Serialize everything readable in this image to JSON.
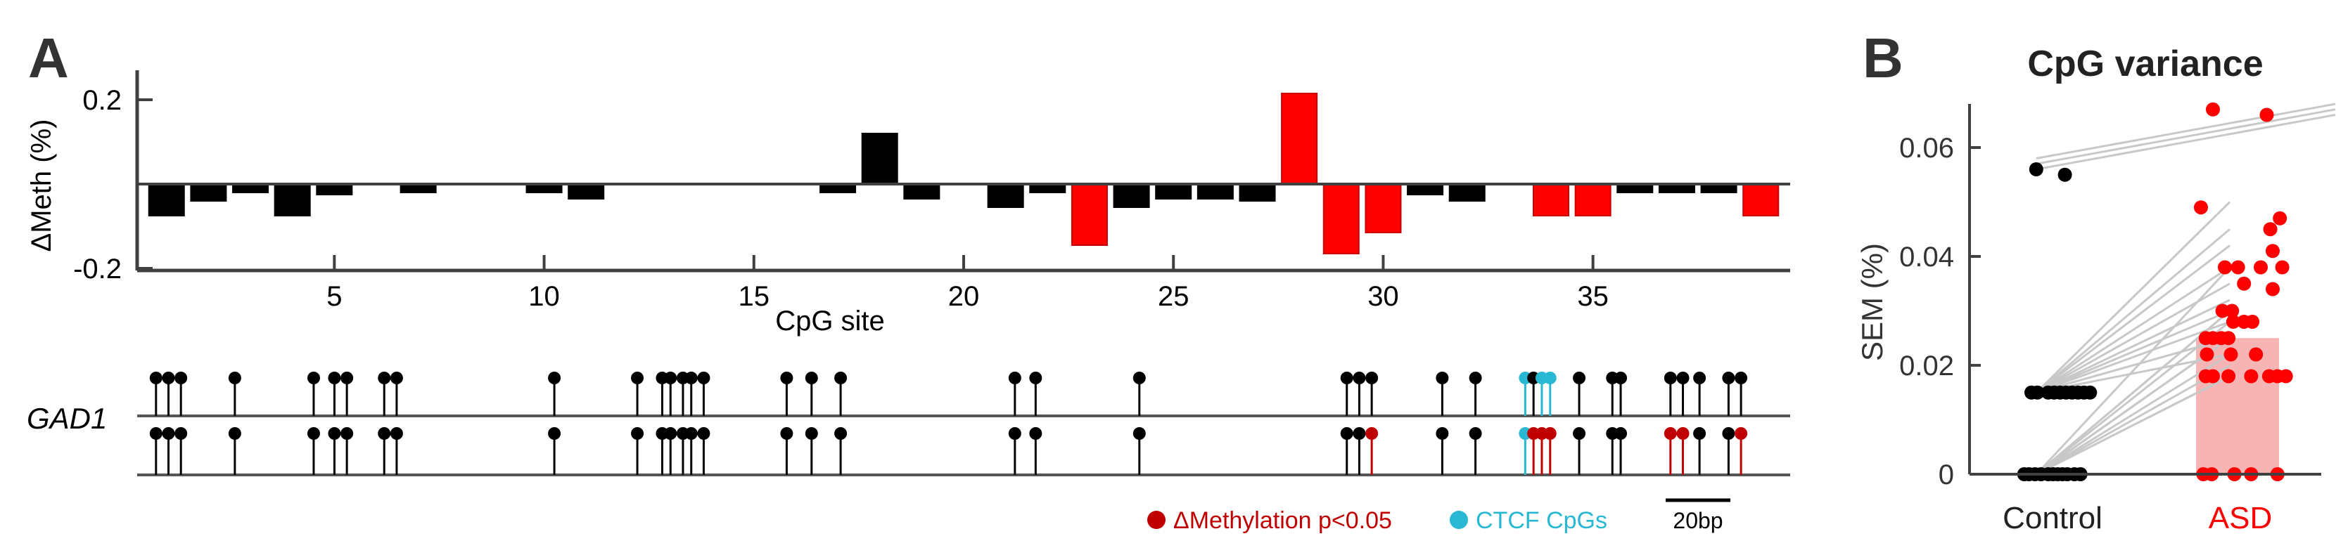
{
  "colors": {
    "black": "#000000",
    "red": "#ff0000",
    "dark_red": "#c00000",
    "cyan": "#29b8d4",
    "grey_line": "#c8c8c8",
    "asd_bar": "#f7b4b4",
    "axis": "#404040"
  },
  "chart_data": [
    {
      "panel": "A",
      "type": "bar",
      "title": "",
      "xlabel": "CpG site",
      "ylabel": "ΔMeth (%)",
      "xlim": [
        0.3,
        39.7
      ],
      "ylim": [
        -0.2,
        0.2
      ],
      "xticks": [
        5,
        10,
        15,
        20,
        25,
        30,
        35
      ],
      "yticks": [
        0.2,
        -0.2
      ],
      "ytick_labels": [
        "0.2",
        "-0.2"
      ],
      "x": [
        1,
        2,
        3,
        4,
        5,
        6,
        7,
        8,
        9,
        10,
        11,
        12,
        13,
        14,
        15,
        16,
        17,
        18,
        19,
        20,
        21,
        22,
        23,
        24,
        25,
        26,
        27,
        28,
        29,
        30,
        31,
        32,
        33,
        34,
        35,
        36,
        37,
        38,
        39
      ],
      "values": [
        -0.075,
        -0.04,
        -0.02,
        -0.075,
        -0.025,
        0,
        -0.02,
        0,
        0,
        -0.02,
        -0.035,
        0,
        0,
        0,
        0,
        0,
        -0.02,
        0.12,
        -0.035,
        0,
        -0.055,
        -0.02,
        -0.145,
        -0.055,
        -0.035,
        -0.035,
        -0.04,
        0.215,
        -0.165,
        -0.115,
        -0.025,
        -0.04,
        0,
        -0.075,
        -0.075,
        -0.02,
        -0.02,
        -0.02,
        -0.075
      ],
      "significant": [
        false,
        false,
        false,
        false,
        false,
        false,
        false,
        false,
        false,
        false,
        false,
        false,
        false,
        false,
        false,
        false,
        false,
        false,
        false,
        false,
        false,
        false,
        true,
        false,
        false,
        false,
        false,
        true,
        true,
        true,
        false,
        false,
        false,
        true,
        true,
        false,
        false,
        false,
        true
      ]
    },
    {
      "panel": "A-lollipop",
      "type": "scatter",
      "gene_label": "GAD1",
      "legend": [
        {
          "label": "ΔMethylation p<0.05",
          "color_key": "dark_red"
        },
        {
          "label": "CTCF CpGs",
          "color_key": "cyan"
        }
      ],
      "scale_bar_label": "20bp",
      "track_bp": 395,
      "sites_bp": [
        2,
        5,
        8,
        21,
        40,
        45,
        48,
        57,
        60,
        98,
        118,
        124,
        126,
        129,
        131,
        134,
        154,
        160,
        167,
        209,
        214,
        239,
        289,
        292,
        295,
        312,
        320,
        332,
        334,
        336,
        338,
        345,
        353,
        355,
        367,
        370,
        374,
        381,
        384
      ],
      "top_colors": [
        "black",
        "black",
        "black",
        "black",
        "black",
        "black",
        "black",
        "black",
        "black",
        "black",
        "black",
        "black",
        "black",
        "black",
        "black",
        "black",
        "black",
        "black",
        "black",
        "black",
        "black",
        "black",
        "black",
        "black",
        "black",
        "black",
        "black",
        "cyan",
        "black",
        "cyan",
        "cyan",
        "black",
        "black",
        "black",
        "black",
        "black",
        "black",
        "black",
        "black"
      ],
      "bottom_colors": [
        "black",
        "black",
        "black",
        "black",
        "black",
        "black",
        "black",
        "black",
        "black",
        "black",
        "black",
        "black",
        "black",
        "black",
        "black",
        "black",
        "black",
        "black",
        "black",
        "black",
        "black",
        "black",
        "black",
        "black",
        "red",
        "black",
        "black",
        "cyan",
        "red",
        "red",
        "red",
        "black",
        "black",
        "black",
        "red",
        "red",
        "black",
        "black",
        "red"
      ]
    },
    {
      "panel": "B",
      "type": "scatter",
      "title": "CpG variance",
      "xlabel": "",
      "ylabel": "SEM (%)",
      "categories": [
        "Control",
        "ASD"
      ],
      "ylim": [
        0,
        0.068
      ],
      "yticks": [
        0,
        0.02,
        0.04,
        0.06
      ],
      "ytick_labels": [
        "0",
        "0.02",
        "0.04",
        "0.06"
      ],
      "asd_mean_bar": 0.025,
      "control_points": [
        {
          "dx": -0.16,
          "y": 0
        },
        {
          "dx": -0.12,
          "y": 0
        },
        {
          "dx": -0.07,
          "y": 0
        },
        {
          "dx": -0.02,
          "y": 0
        },
        {
          "dx": 0.04,
          "y": 0
        },
        {
          "dx": 0.08,
          "y": 0
        },
        {
          "dx": 0.12,
          "y": 0
        },
        {
          "dx": 0.16,
          "y": 0
        },
        {
          "dx": 0.2,
          "y": 0
        },
        {
          "dx": 0.26,
          "y": 0
        },
        {
          "dx": 0.31,
          "y": 0
        },
        {
          "dx": -0.1,
          "y": 0.015
        },
        {
          "dx": -0.05,
          "y": 0.015
        },
        {
          "dx": 0.04,
          "y": 0.015
        },
        {
          "dx": 0.09,
          "y": 0.015
        },
        {
          "dx": 0.14,
          "y": 0.015
        },
        {
          "dx": 0.19,
          "y": 0.015
        },
        {
          "dx": 0.24,
          "y": 0.015
        },
        {
          "dx": 0.29,
          "y": 0.015
        },
        {
          "dx": 0.34,
          "y": 0.015
        },
        {
          "dx": 0.39,
          "y": 0.015
        },
        {
          "dx": -0.06,
          "y": 0.056
        },
        {
          "dx": 0.18,
          "y": 0.055
        }
      ],
      "asd_points": [
        {
          "dx": -0.28,
          "y": 0
        },
        {
          "dx": -0.21,
          "y": 0
        },
        {
          "dx": -0.02,
          "y": 0
        },
        {
          "dx": 0.12,
          "y": 0
        },
        {
          "dx": 0.34,
          "y": 0
        },
        {
          "dx": -0.26,
          "y": 0.018
        },
        {
          "dx": -0.2,
          "y": 0.018
        },
        {
          "dx": -0.07,
          "y": 0.018
        },
        {
          "dx": 0.12,
          "y": 0.018
        },
        {
          "dx": 0.27,
          "y": 0.018
        },
        {
          "dx": 0.34,
          "y": 0.018
        },
        {
          "dx": 0.41,
          "y": 0.018
        },
        {
          "dx": -0.25,
          "y": 0.022
        },
        {
          "dx": -0.05,
          "y": 0.022
        },
        {
          "dx": 0.16,
          "y": 0.022
        },
        {
          "dx": -0.26,
          "y": 0.025
        },
        {
          "dx": -0.2,
          "y": 0.025
        },
        {
          "dx": -0.13,
          "y": 0.025
        },
        {
          "dx": -0.07,
          "y": 0.025
        },
        {
          "dx": -0.03,
          "y": 0.028
        },
        {
          "dx": 0.06,
          "y": 0.028
        },
        {
          "dx": 0.13,
          "y": 0.028
        },
        {
          "dx": -0.12,
          "y": 0.03
        },
        {
          "dx": -0.04,
          "y": 0.03
        },
        {
          "dx": 0.06,
          "y": 0.035
        },
        {
          "dx": 0.3,
          "y": 0.034
        },
        {
          "dx": -0.1,
          "y": 0.038
        },
        {
          "dx": 0.01,
          "y": 0.038
        },
        {
          "dx": 0.2,
          "y": 0.038
        },
        {
          "dx": 0.38,
          "y": 0.038
        },
        {
          "dx": 0.3,
          "y": 0.041
        },
        {
          "dx": 0.28,
          "y": 0.045
        },
        {
          "dx": 0.36,
          "y": 0.047
        },
        {
          "dx": -0.3,
          "y": 0.049
        },
        {
          "dx": -0.2,
          "y": 0.067
        },
        {
          "dx": 0.25,
          "y": 0.066
        }
      ],
      "pair_lines": [
        [
          0,
          0
        ],
        [
          0,
          0
        ],
        [
          0,
          0.018
        ],
        [
          0,
          0.018
        ],
        [
          0,
          0.02
        ],
        [
          0,
          0.022
        ],
        [
          0,
          0.025
        ],
        [
          0,
          0.025
        ],
        [
          0,
          0.025
        ],
        [
          0,
          0.028
        ],
        [
          0,
          0.03
        ],
        [
          0,
          0.03
        ],
        [
          0,
          0.038
        ],
        [
          0.015,
          0.022
        ],
        [
          0.015,
          0.025
        ],
        [
          0.015,
          0.028
        ],
        [
          0.015,
          0.03
        ],
        [
          0.015,
          0.032
        ],
        [
          0.015,
          0.035
        ],
        [
          0.015,
          0.038
        ],
        [
          0.015,
          0.042
        ],
        [
          0.015,
          0.045
        ],
        [
          0.015,
          0.05
        ],
        [
          0.056,
          0.066
        ],
        [
          0.057,
          0.067
        ],
        [
          0.058,
          0.068
        ]
      ]
    }
  ],
  "labels": {
    "panel_a": "A",
    "panel_b": "B"
  }
}
